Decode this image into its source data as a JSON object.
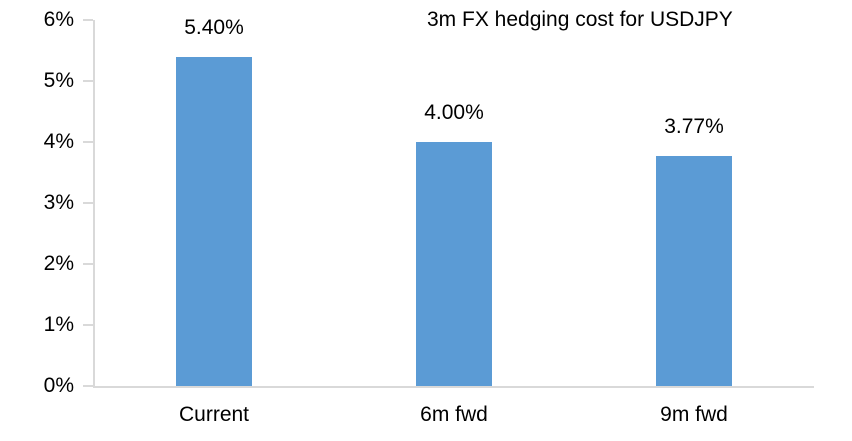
{
  "chart_data": {
    "type": "bar",
    "title": "3m FX hedging cost for USDJPY",
    "categories": [
      "Current",
      "6m fwd",
      "9m fwd"
    ],
    "values": [
      5.4,
      4.0,
      3.77
    ],
    "data_labels": [
      "5.40%",
      "4.00%",
      "3.77%"
    ],
    "xlabel": "",
    "ylabel": "",
    "ylim": [
      0,
      6
    ],
    "y_tick_step": 1,
    "y_tick_labels": [
      "0%",
      "1%",
      "2%",
      "3%",
      "4%",
      "5%",
      "6%"
    ],
    "grid": false,
    "legend": "none",
    "bar_color": "#5B9BD5",
    "axis_color": "#D9D9D9",
    "text_color": "#000000",
    "background_color": "#FFFFFF"
  }
}
